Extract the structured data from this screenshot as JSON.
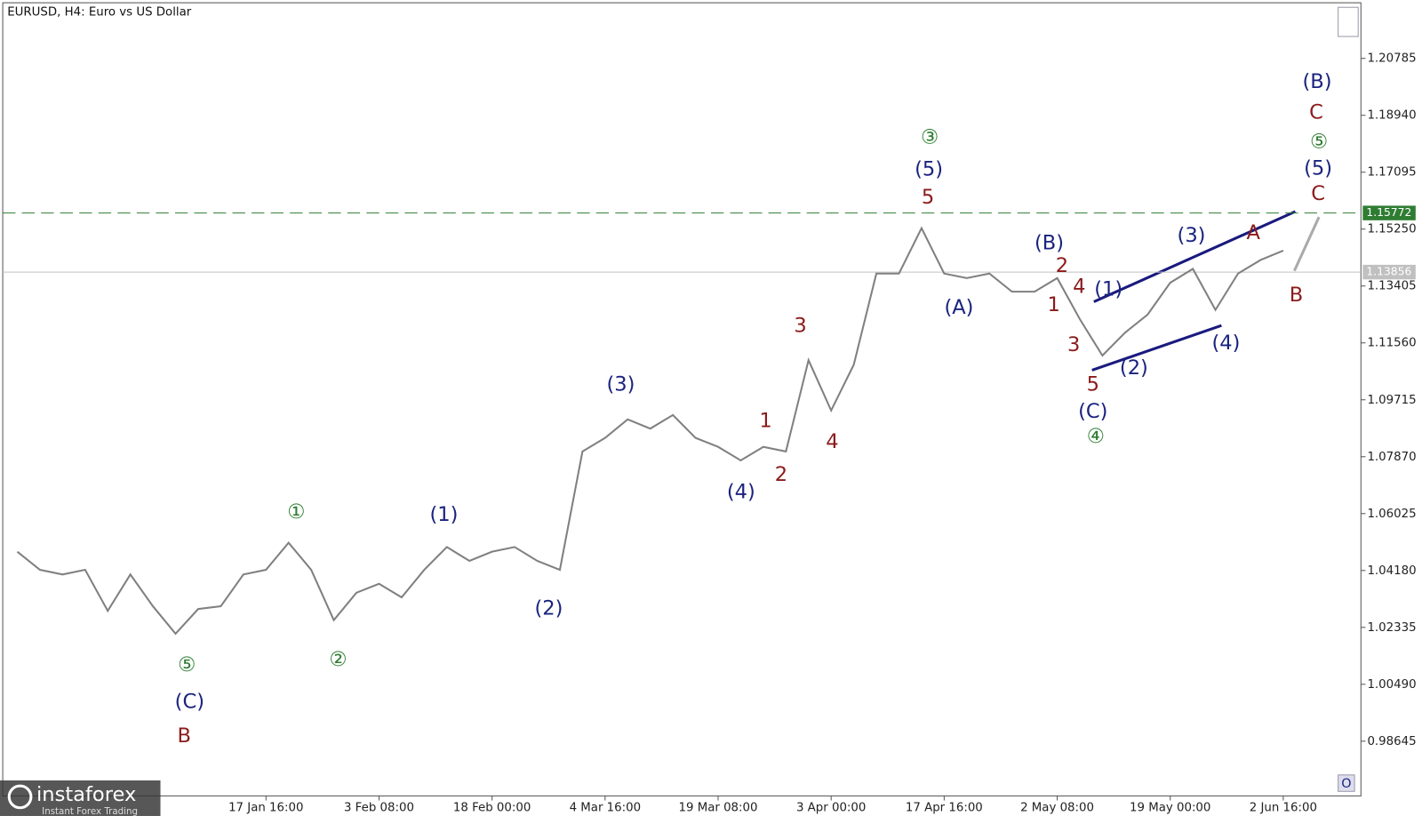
{
  "chart_data": {
    "type": "line",
    "title": "EURUSD, H4:  Euro vs US Dollar",
    "categories": [
      null,
      null,
      null,
      null,
      null,
      null,
      null,
      null,
      null,
      null,
      null,
      "17 Jan 16:00",
      null,
      null,
      null,
      null,
      "3 Feb 08:00",
      null,
      null,
      null,
      null,
      "18 Feb 00:00",
      null,
      null,
      null,
      null,
      "4 Mar 16:00",
      null,
      null,
      null,
      null,
      "19 Mar 08:00",
      null,
      null,
      null,
      null,
      "3 Apr 00:00",
      null,
      null,
      null,
      null,
      "17 Apr 16:00",
      null,
      null,
      null,
      null,
      "2 May 08:00",
      null,
      null,
      null,
      null,
      "19 May 00:00",
      null,
      null,
      null,
      null,
      "2 Jun 16:00"
    ],
    "series": [
      {
        "name": "EURUSD",
        "color": "#808080",
        "values": [
          1.0479,
          1.042,
          1.0405,
          1.042,
          1.0287,
          1.0405,
          1.0302,
          1.0213,
          1.0293,
          1.0302,
          1.0405,
          1.042,
          1.0508,
          1.042,
          1.0257,
          1.0346,
          1.0375,
          1.0331,
          1.042,
          1.0494,
          1.0449,
          1.0479,
          1.0494,
          1.0449,
          1.042,
          1.0804,
          1.0848,
          1.0908,
          1.0878,
          1.0922,
          1.0848,
          1.0819,
          1.0775,
          1.0819,
          1.0804,
          1.11,
          1.0937,
          1.1085,
          1.1381,
          1.1381,
          1.1528,
          1.1381,
          1.1366,
          1.1381,
          1.1322,
          1.1322,
          1.1366,
          1.1233,
          1.1115,
          1.1189,
          1.1248,
          1.1351,
          1.1396,
          1.1263,
          1.1381,
          1.1425,
          1.1455
        ]
      }
    ],
    "ylim": [
      0.9687,
      1.2253
    ],
    "yticks": [
      0.98645,
      {
        "value": 1.0049,
        "label": "1.00490"
      },
      1.02335,
      {
        "value": 1.0418,
        "label": "1.04180"
      },
      1.06025,
      {
        "value": 1.0787,
        "label": "1.07870"
      },
      1.09715,
      {
        "value": 1.1156,
        "label": "1.11560"
      },
      1.13405,
      {
        "value": 1.1525,
        "label": "1.15250"
      },
      1.17095,
      {
        "value": 1.1894,
        "label": "1.18940"
      },
      1.20785
    ],
    "levels": [
      {
        "value": 1.15772,
        "color": "#2e7d32",
        "dashed": true
      },
      {
        "value": 1.13856,
        "color": "#c0c0c0",
        "dashed": false
      }
    ],
    "annotations": [
      {
        "text": "①",
        "color": "#2e7d32"
      },
      {
        "text": "⑤",
        "color": "#2e7d32"
      },
      {
        "text": "(C)",
        "color": "#1a237e"
      },
      {
        "text": "B",
        "color": "#8b1a1a"
      },
      {
        "text": "②",
        "color": "#2e7d32"
      },
      {
        "text": "(1)",
        "color": "#1a237e"
      },
      {
        "text": "(2)",
        "color": "#1a237e"
      },
      {
        "text": "(3)",
        "color": "#1a237e"
      },
      {
        "text": "(4)",
        "color": "#1a237e"
      },
      {
        "text": "1",
        "color": "#8b1a1a"
      },
      {
        "text": "2",
        "color": "#8b1a1a"
      },
      {
        "text": "3",
        "color": "#8b1a1a"
      },
      {
        "text": "4",
        "color": "#8b1a1a"
      },
      {
        "text": "③",
        "color": "#2e7d32"
      },
      {
        "text": "(5)",
        "color": "#1a237e"
      },
      {
        "text": "5",
        "color": "#8b1a1a"
      },
      {
        "text": "(A)",
        "color": "#1a237e"
      },
      {
        "text": "(B)",
        "color": "#1a237e"
      },
      {
        "text": "2",
        "color": "#8b1a1a"
      },
      {
        "text": "4",
        "color": "#8b1a1a"
      },
      {
        "text": "1",
        "color": "#8b1a1a"
      },
      {
        "text": "3",
        "color": "#8b1a1a"
      },
      {
        "text": "5",
        "color": "#8b1a1a"
      },
      {
        "text": "(C)",
        "color": "#1a237e"
      },
      {
        "text": "④",
        "color": "#2e7d32"
      },
      {
        "text": "(1)",
        "color": "#1a237e"
      },
      {
        "text": "(2)",
        "color": "#1a237e"
      },
      {
        "text": "(3)",
        "color": "#1a237e"
      },
      {
        "text": "(4)",
        "color": "#1a237e"
      },
      {
        "text": "A",
        "color": "#8b1a1a"
      },
      {
        "text": "B",
        "color": "#8b1a1a"
      },
      {
        "text": "(B)",
        "color": "#1a237e"
      },
      {
        "text": "C",
        "color": "#8b1a1a"
      },
      {
        "text": "⑤",
        "color": "#2e7d32"
      },
      {
        "text": "(5)",
        "color": "#1a237e"
      },
      {
        "text": "C",
        "color": "#8b1a1a"
      }
    ]
  },
  "logo": {
    "name": "instaforex",
    "tagline": "Instant Forex Trading"
  }
}
